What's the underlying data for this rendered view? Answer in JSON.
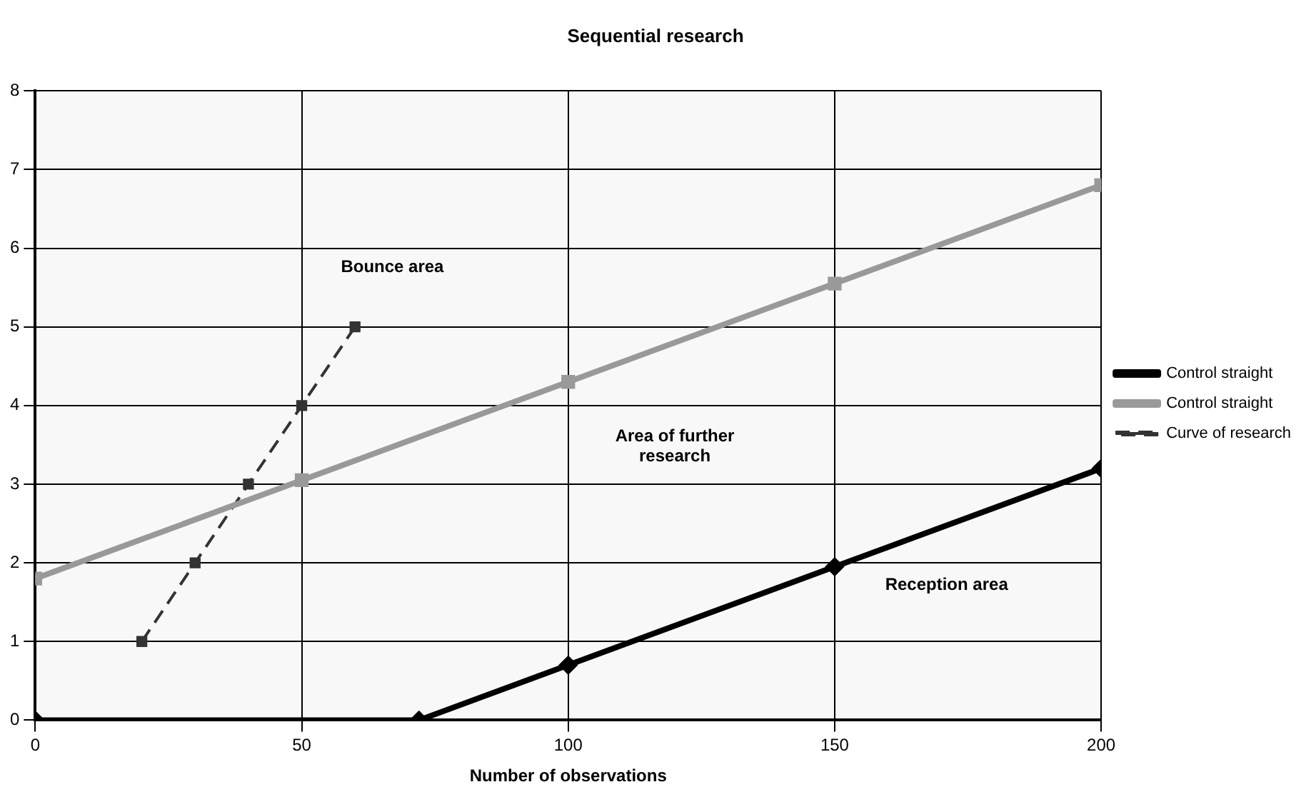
{
  "chart_data": {
    "type": "line",
    "title": "Sequential research",
    "xlabel": "Number of observations",
    "series": [
      {
        "name": "Control straight",
        "color": "#000000",
        "x": [
          0,
          72,
          100,
          150,
          200
        ],
        "values": [
          0,
          0,
          0.7,
          1.95,
          3.2
        ],
        "marker": "diamond",
        "line_style": "solid"
      },
      {
        "name": "Control straight",
        "color": "#999999",
        "x": [
          0,
          50,
          100,
          150,
          200
        ],
        "values": [
          1.8,
          3.05,
          4.3,
          5.55,
          6.8
        ],
        "marker": "square",
        "line_style": "solid"
      },
      {
        "name": "Curve of research",
        "color": "#333333",
        "x": [
          20,
          30,
          40,
          50,
          60
        ],
        "values": [
          1,
          2,
          3,
          4,
          5
        ],
        "marker": "square",
        "line_style": "dashed"
      }
    ],
    "xlim": [
      0,
      200
    ],
    "xticks": [
      0,
      50,
      100,
      150,
      200
    ],
    "ylim": [
      0,
      8
    ],
    "yticks": [
      0,
      1,
      2,
      3,
      4,
      5,
      6,
      7,
      8
    ],
    "grid": true,
    "legend": "right",
    "annotations": [
      "Bounce area",
      "Area of further research",
      "Reception area"
    ]
  }
}
